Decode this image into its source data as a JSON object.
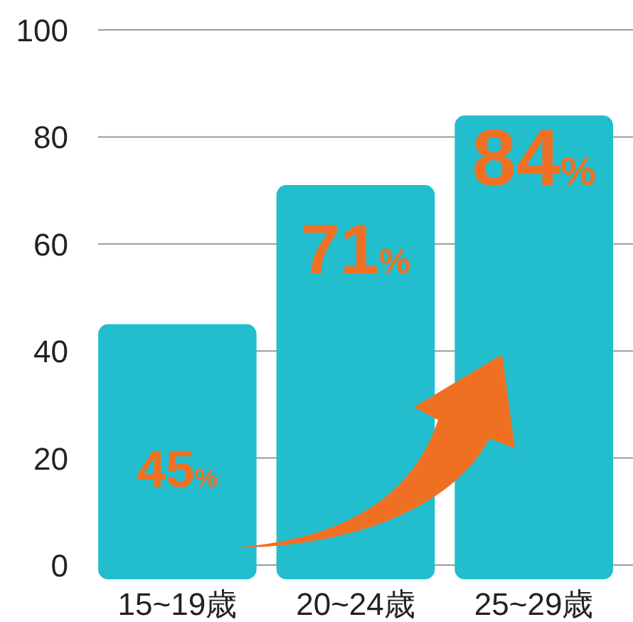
{
  "chart_data": {
    "type": "bar",
    "categories": [
      "15~19歳",
      "20~24歳",
      "25~29歳"
    ],
    "values": [
      45,
      71,
      84
    ],
    "color": "#22bece",
    "value_labels": [
      "45%",
      "71%",
      "84%"
    ],
    "ylim": [
      0,
      100
    ],
    "yticks": [
      0,
      20,
      40,
      60,
      80,
      100
    ],
    "grid": "y"
  }
}
